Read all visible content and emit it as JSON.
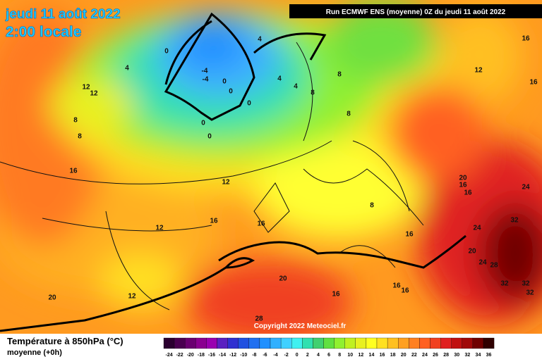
{
  "header": {
    "date": "jeudi 11 août 2022",
    "time": "2:00 locale",
    "run": "Run ECMWF ENS (moyenne) 0Z du jeudi 11 août 2022",
    "copyright": "Copyright 2022 Meteociel.fr"
  },
  "legend": {
    "title": "Température à 850hPa (°C)",
    "subtitle": "moyenne  (+0h)",
    "ticks": [
      -24,
      -22,
      -20,
      -18,
      -16,
      -14,
      -12,
      -10,
      -8,
      -6,
      -4,
      -2,
      0,
      2,
      4,
      6,
      8,
      10,
      12,
      14,
      16,
      18,
      20,
      22,
      24,
      26,
      28,
      30,
      32,
      34,
      36
    ],
    "colors": [
      "#2b0030",
      "#4a0050",
      "#6a0070",
      "#8a0090",
      "#9a00b0",
      "#5a20c0",
      "#3030d0",
      "#2050e0",
      "#2070f0",
      "#2090ff",
      "#30b0ff",
      "#40d0ff",
      "#40f0f0",
      "#30e0b0",
      "#40d070",
      "#60e040",
      "#90f030",
      "#c0f020",
      "#e8f020",
      "#ffff20",
      "#ffe020",
      "#ffc020",
      "#ffa020",
      "#ff8020",
      "#ff6020",
      "#f04020",
      "#e02020",
      "#c01010",
      "#a00808",
      "#700000",
      "#300000"
    ]
  },
  "map": {
    "labels": [
      "12",
      "12",
      "4",
      "0",
      "4",
      "-4",
      "-4",
      "0",
      "0",
      "0",
      "4",
      "4",
      "8",
      "8",
      "8",
      "0",
      "0",
      "8",
      "8",
      "16",
      "12",
      "12",
      "16",
      "16",
      "8",
      "16",
      "20",
      "16",
      "16",
      "24",
      "24",
      "32",
      "20",
      "24",
      "28",
      "32",
      "32",
      "32",
      "20",
      "16",
      "16",
      "16",
      "12",
      "20",
      "28",
      "16",
      "12",
      "16"
    ]
  }
}
